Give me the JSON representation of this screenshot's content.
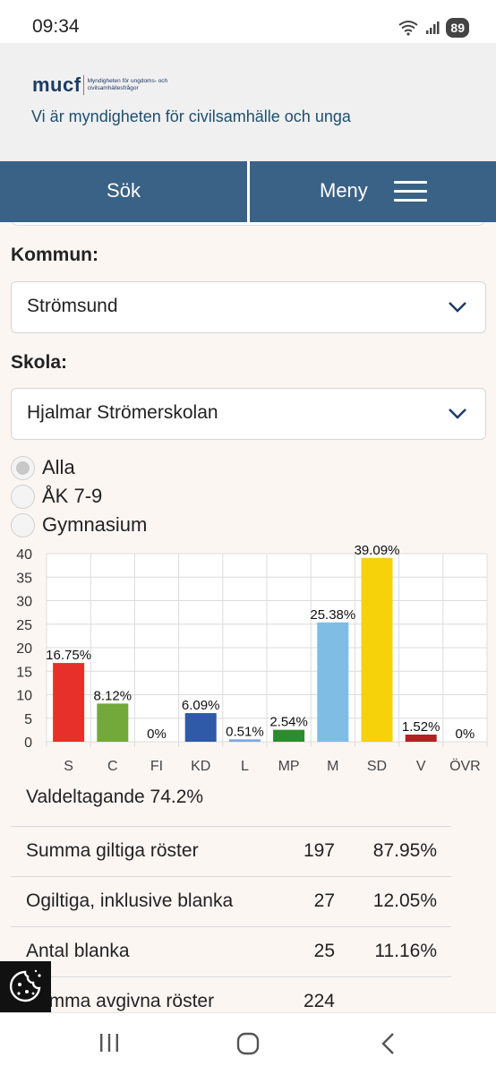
{
  "status_bar": {
    "time": "09:34",
    "battery": "89"
  },
  "header": {
    "logo_word": "mucf",
    "logo_subtitle": "Myndigheten för ungdoms- och civilsamhällesfrågor",
    "tagline": "Vi är myndigheten för civilsamhälle och unga"
  },
  "nav": {
    "search_label": "Sök",
    "menu_label": "Meny"
  },
  "filters": {
    "municipality_label": "Kommun:",
    "municipality_value": "Strömsund",
    "school_label": "Skola:",
    "school_value": "Hjalmar Strömerskolan",
    "level_options": [
      "Alla",
      "ÅK 7-9",
      "Gymnasium"
    ],
    "level_selected": "Alla"
  },
  "chart_data": {
    "type": "bar",
    "categories": [
      "S",
      "C",
      "FI",
      "KD",
      "L",
      "MP",
      "M",
      "SD",
      "V",
      "ÖVR"
    ],
    "values": [
      16.75,
      8.12,
      0,
      6.09,
      0.51,
      2.54,
      25.38,
      39.09,
      1.52,
      0
    ],
    "data_labels": [
      "16.75%",
      "8.12%",
      "0%",
      "6.09%",
      "0.51%",
      "2.54%",
      "25.38%",
      "39.09%",
      "1.52%",
      "0%"
    ],
    "colors": [
      "#e8302a",
      "#73a83a",
      "#d1007a",
      "#2e5aa7",
      "#7fa8de",
      "#2e8b2e",
      "#7fbde5",
      "#f5d20a",
      "#b52020",
      "#999999"
    ],
    "ylim": [
      0,
      40
    ],
    "yticks": [
      0,
      5,
      10,
      15,
      20,
      25,
      30,
      35,
      40
    ],
    "grid": true
  },
  "stats": {
    "turnout": "Valdeltagande 74.2%",
    "rows": [
      {
        "label": "Summa giltiga röster",
        "count": "197",
        "pct": "87.95%"
      },
      {
        "label": "Ogiltiga, inklusive blanka",
        "count": "27",
        "pct": "12.05%"
      },
      {
        "label": "Antal blanka",
        "count": "25",
        "pct": "11.16%"
      },
      {
        "label": "Summa avgivna röster",
        "count": "224",
        "pct": ""
      }
    ]
  }
}
